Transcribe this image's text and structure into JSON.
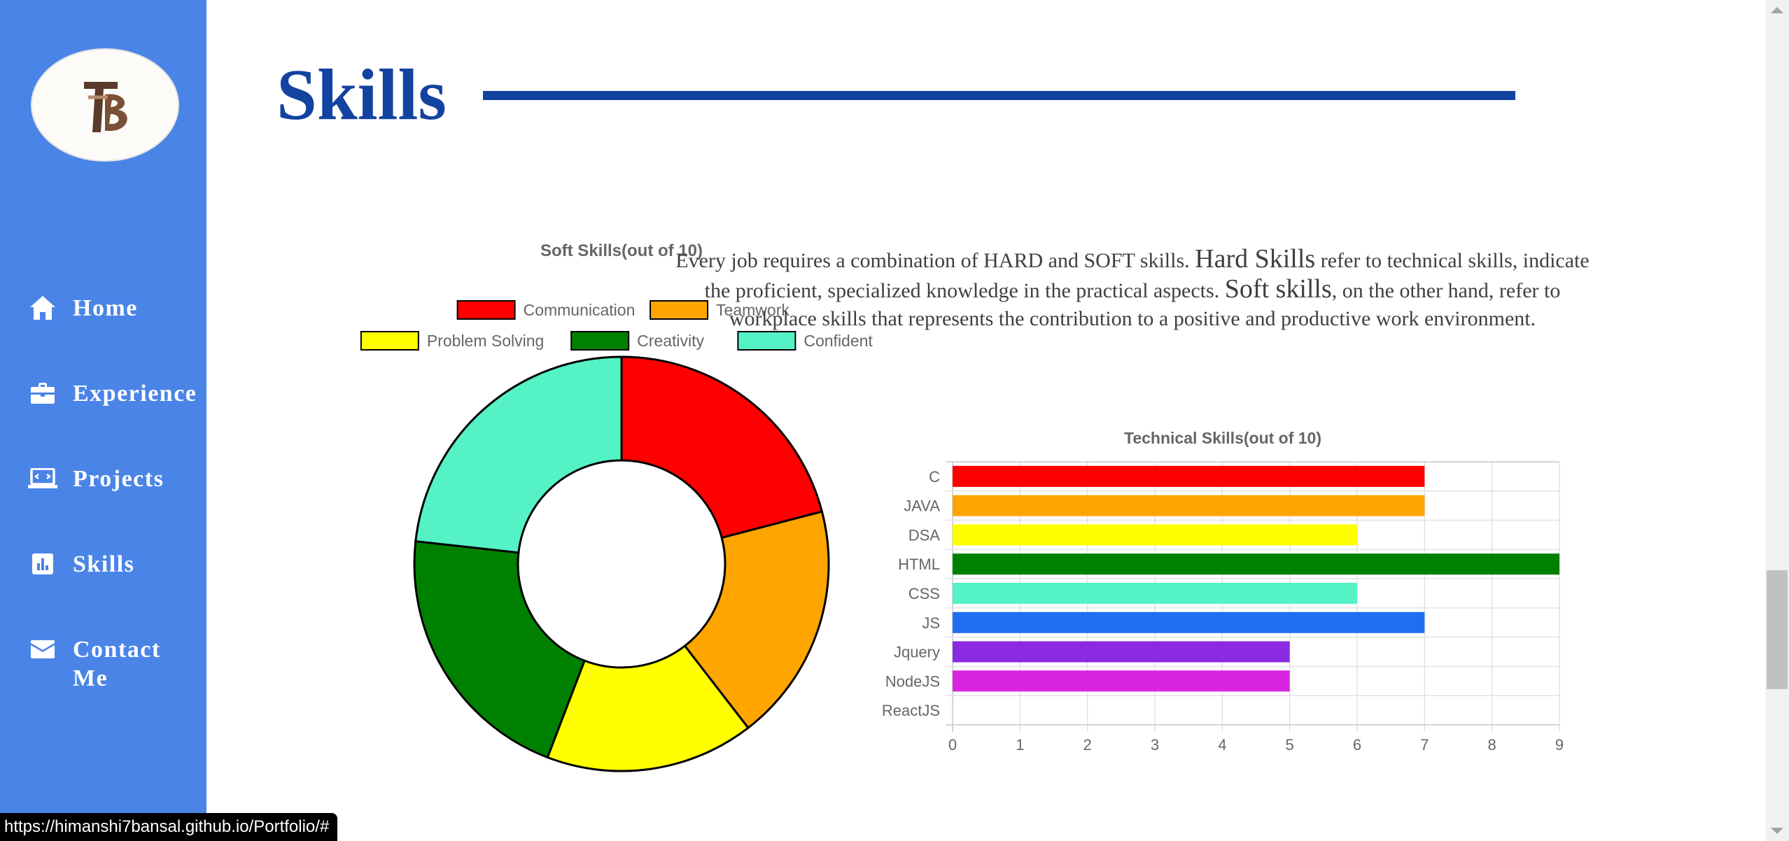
{
  "sidebar": {
    "logo_text": "PB",
    "nav": [
      {
        "label": "Home",
        "icon": "home-icon"
      },
      {
        "label": "Experience",
        "icon": "briefcase-icon"
      },
      {
        "label": "Projects",
        "icon": "laptop-code-icon"
      },
      {
        "label": "Skills",
        "icon": "chart-bar-icon"
      },
      {
        "label": "Contact\nMe",
        "icon": "envelope-icon"
      }
    ]
  },
  "main": {
    "title": "Skills",
    "intro": {
      "p1": "Every job requires a combination of HARD and SOFT skills.",
      "hard": "Hard Skills",
      "p2": "refer to technical skills, indicate the proficient, specialized knowledge in the practical aspects.",
      "soft": "Soft skills",
      "p3": ", on the other hand, refer to workplace skills that represents the contribution to a positive and productive work environment."
    }
  },
  "status_url": "https://himanshi7bansal.github.io/Portfolio/#",
  "chart_data": [
    {
      "type": "pie",
      "variant": "doughnut",
      "title": "Soft Skills(out of 10)",
      "categories": [
        "Communication",
        "Teamwork",
        "Problem Solving",
        "Creativity",
        "Confident"
      ],
      "values": [
        9,
        8,
        7,
        9,
        10
      ],
      "colors": [
        "#ff0000",
        "#ffa500",
        "#ffff00",
        "#008000",
        "#55f2c6"
      ],
      "legend": "top"
    },
    {
      "type": "bar",
      "orientation": "horizontal",
      "title": "Technical Skills(out of 10)",
      "categories": [
        "C",
        "JAVA",
        "DSA",
        "HTML",
        "CSS",
        "JS",
        "Jquery",
        "NodeJS",
        "ReactJS"
      ],
      "values": [
        7,
        7,
        6,
        9,
        6,
        7,
        5,
        5,
        0
      ],
      "colors": [
        "#ff0000",
        "#ffa500",
        "#ffff00",
        "#008000",
        "#55f2c6",
        "#1e6ff0",
        "#8a2be2",
        "#d825e0",
        "#ff69b4"
      ],
      "xlim": [
        0,
        9
      ],
      "xticks": [
        "0",
        "1",
        "2",
        "3",
        "4",
        "5",
        "6",
        "7",
        "8",
        "9"
      ],
      "grid": true
    }
  ]
}
